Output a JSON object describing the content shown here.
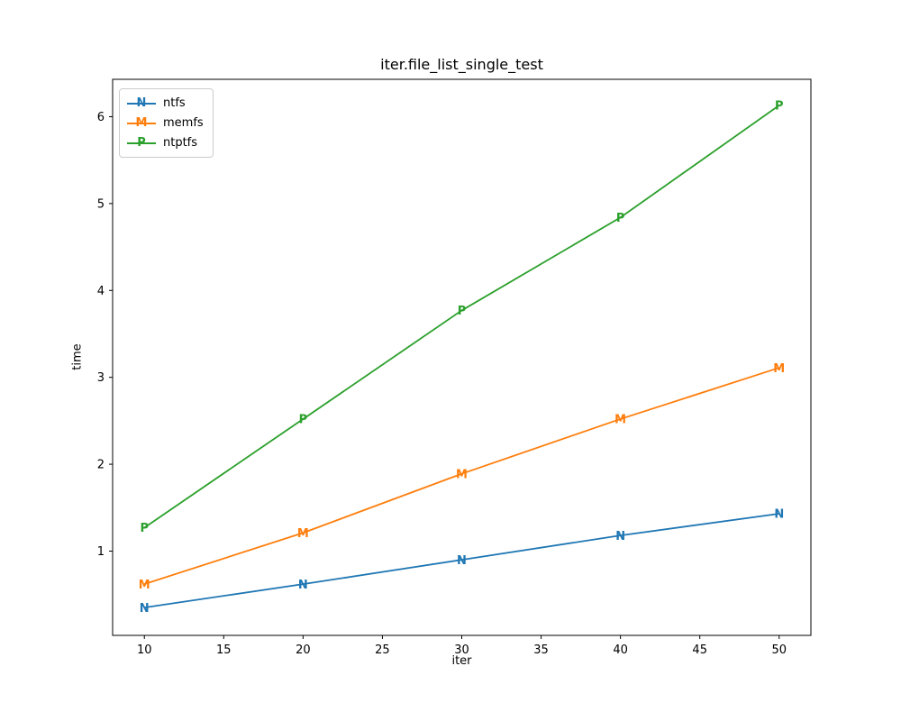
{
  "title": "iter.file_list_single_test",
  "chart_data": {
    "type": "line",
    "title": "iter.file_list_single_test",
    "xlabel": "iter",
    "ylabel": "time",
    "x": [
      10,
      20,
      30,
      40,
      50
    ],
    "series": [
      {
        "name": "ntfs",
        "marker": "N",
        "color": "#1f77b4",
        "values": [
          0.35,
          0.62,
          0.9,
          1.18,
          1.43
        ]
      },
      {
        "name": "memfs",
        "marker": "M",
        "color": "#ff7f0e",
        "values": [
          0.62,
          1.21,
          1.89,
          2.52,
          3.11
        ]
      },
      {
        "name": "ntptfs",
        "marker": "P",
        "color": "#2ca02c",
        "values": [
          1.27,
          2.52,
          3.77,
          4.84,
          6.13
        ]
      }
    ],
    "xticks": [
      10,
      15,
      20,
      25,
      30,
      35,
      40,
      45,
      50
    ],
    "yticks": [
      1,
      2,
      3,
      4,
      5,
      6
    ],
    "xlim": [
      8,
      52
    ],
    "ylim": [
      0.03,
      6.43
    ],
    "grid": false,
    "legend_position": "upper left",
    "axes_color": "#000000",
    "background_color": "#ffffff"
  }
}
